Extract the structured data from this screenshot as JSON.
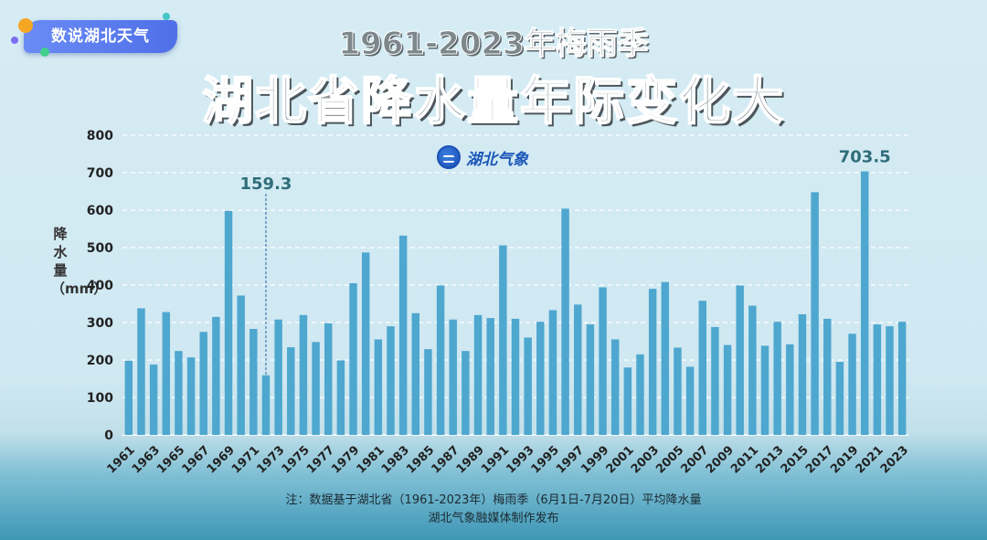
{
  "badge": {
    "label": "数说湖北天气"
  },
  "header": {
    "title_line1": "1961-2023年梅雨季",
    "title_line2": "湖北省降水量年际变化大"
  },
  "logo": {
    "text": "湖北气象"
  },
  "colors": {
    "bar": "#4ea7cf",
    "axis_text": "#222222",
    "annotation": "#2f6d7a",
    "grid": "#ffffff"
  },
  "chart_data": {
    "type": "bar",
    "ylabel": "降水量（mm）",
    "ylim": [
      0,
      800
    ],
    "yticks": [
      0,
      100,
      200,
      300,
      400,
      500,
      600,
      700,
      800
    ],
    "grid": true,
    "x": [
      1961,
      1962,
      1963,
      1964,
      1965,
      1966,
      1967,
      1968,
      1969,
      1970,
      1971,
      1972,
      1973,
      1974,
      1975,
      1976,
      1977,
      1978,
      1979,
      1980,
      1981,
      1982,
      1983,
      1984,
      1985,
      1986,
      1987,
      1988,
      1989,
      1990,
      1991,
      1992,
      1993,
      1994,
      1995,
      1996,
      1997,
      1998,
      1999,
      2000,
      2001,
      2002,
      2003,
      2004,
      2005,
      2006,
      2007,
      2008,
      2009,
      2010,
      2011,
      2012,
      2013,
      2014,
      2015,
      2016,
      2017,
      2018,
      2019,
      2020,
      2021,
      2022,
      2023
    ],
    "values": [
      198,
      338,
      188,
      328,
      224,
      207,
      275,
      315,
      598,
      372,
      283,
      159.3,
      308,
      234,
      320,
      248,
      298,
      199,
      405,
      487,
      255,
      290,
      532,
      325,
      229,
      399,
      308,
      224,
      320,
      312,
      506,
      310,
      260,
      302,
      333,
      604,
      348,
      295,
      394,
      255,
      180,
      215,
      390,
      408,
      233,
      182,
      358,
      288,
      240,
      399,
      345,
      238,
      302,
      242,
      322,
      648,
      310,
      195,
      270,
      703.5,
      295,
      290,
      302
    ],
    "xtick_labels": [
      "1961",
      "1963",
      "1965",
      "1967",
      "1969",
      "1971",
      "1973",
      "1975",
      "1977",
      "1979",
      "1981",
      "1983",
      "1985",
      "1987",
      "1989",
      "1991",
      "1993",
      "1995",
      "1997",
      "1999",
      "2001",
      "2003",
      "2005",
      "2007",
      "2009",
      "2011",
      "2013",
      "2015",
      "2017",
      "2019",
      "2021",
      "2023"
    ],
    "annotations": [
      {
        "year": 1972,
        "label": "159.3"
      },
      {
        "year": 2020,
        "label": "703.5"
      }
    ]
  },
  "footer": {
    "note_line1": "注：数据基于湖北省（1961-2023年）梅雨季（6月1日-7月20日）平均降水量",
    "note_line2": "湖北气象融媒体制作发布"
  }
}
